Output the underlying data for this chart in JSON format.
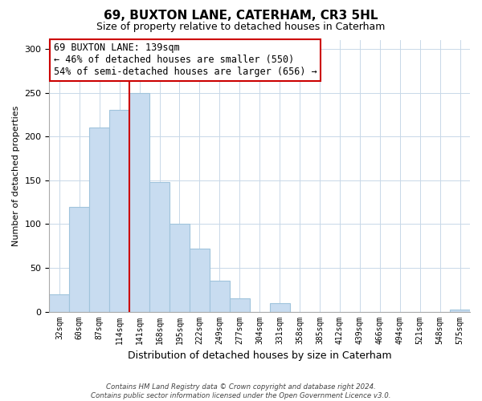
{
  "title": "69, BUXTON LANE, CATERHAM, CR3 5HL",
  "subtitle": "Size of property relative to detached houses in Caterham",
  "xlabel": "Distribution of detached houses by size in Caterham",
  "ylabel": "Number of detached properties",
  "bar_color": "#c8dcf0",
  "bar_edge_color": "#a0c4dc",
  "bin_labels": [
    "32sqm",
    "60sqm",
    "87sqm",
    "114sqm",
    "141sqm",
    "168sqm",
    "195sqm",
    "222sqm",
    "249sqm",
    "277sqm",
    "304sqm",
    "331sqm",
    "358sqm",
    "385sqm",
    "412sqm",
    "439sqm",
    "466sqm",
    "494sqm",
    "521sqm",
    "548sqm",
    "575sqm"
  ],
  "bar_heights": [
    20,
    120,
    210,
    230,
    250,
    148,
    100,
    72,
    35,
    15,
    0,
    10,
    0,
    0,
    0,
    0,
    0,
    0,
    0,
    0,
    2
  ],
  "marker_index": 4,
  "marker_color": "#cc0000",
  "ylim": [
    0,
    310
  ],
  "yticks": [
    0,
    50,
    100,
    150,
    200,
    250,
    300
  ],
  "annotation_text": "69 BUXTON LANE: 139sqm\n← 46% of detached houses are smaller (550)\n54% of semi-detached houses are larger (656) →",
  "annotation_box_color": "#ffffff",
  "annotation_box_edge_color": "#cc0000",
  "footer_line1": "Contains HM Land Registry data © Crown copyright and database right 2024.",
  "footer_line2": "Contains public sector information licensed under the Open Government Licence v3.0.",
  "bg_color": "#ffffff",
  "grid_color": "#c8d8e8"
}
